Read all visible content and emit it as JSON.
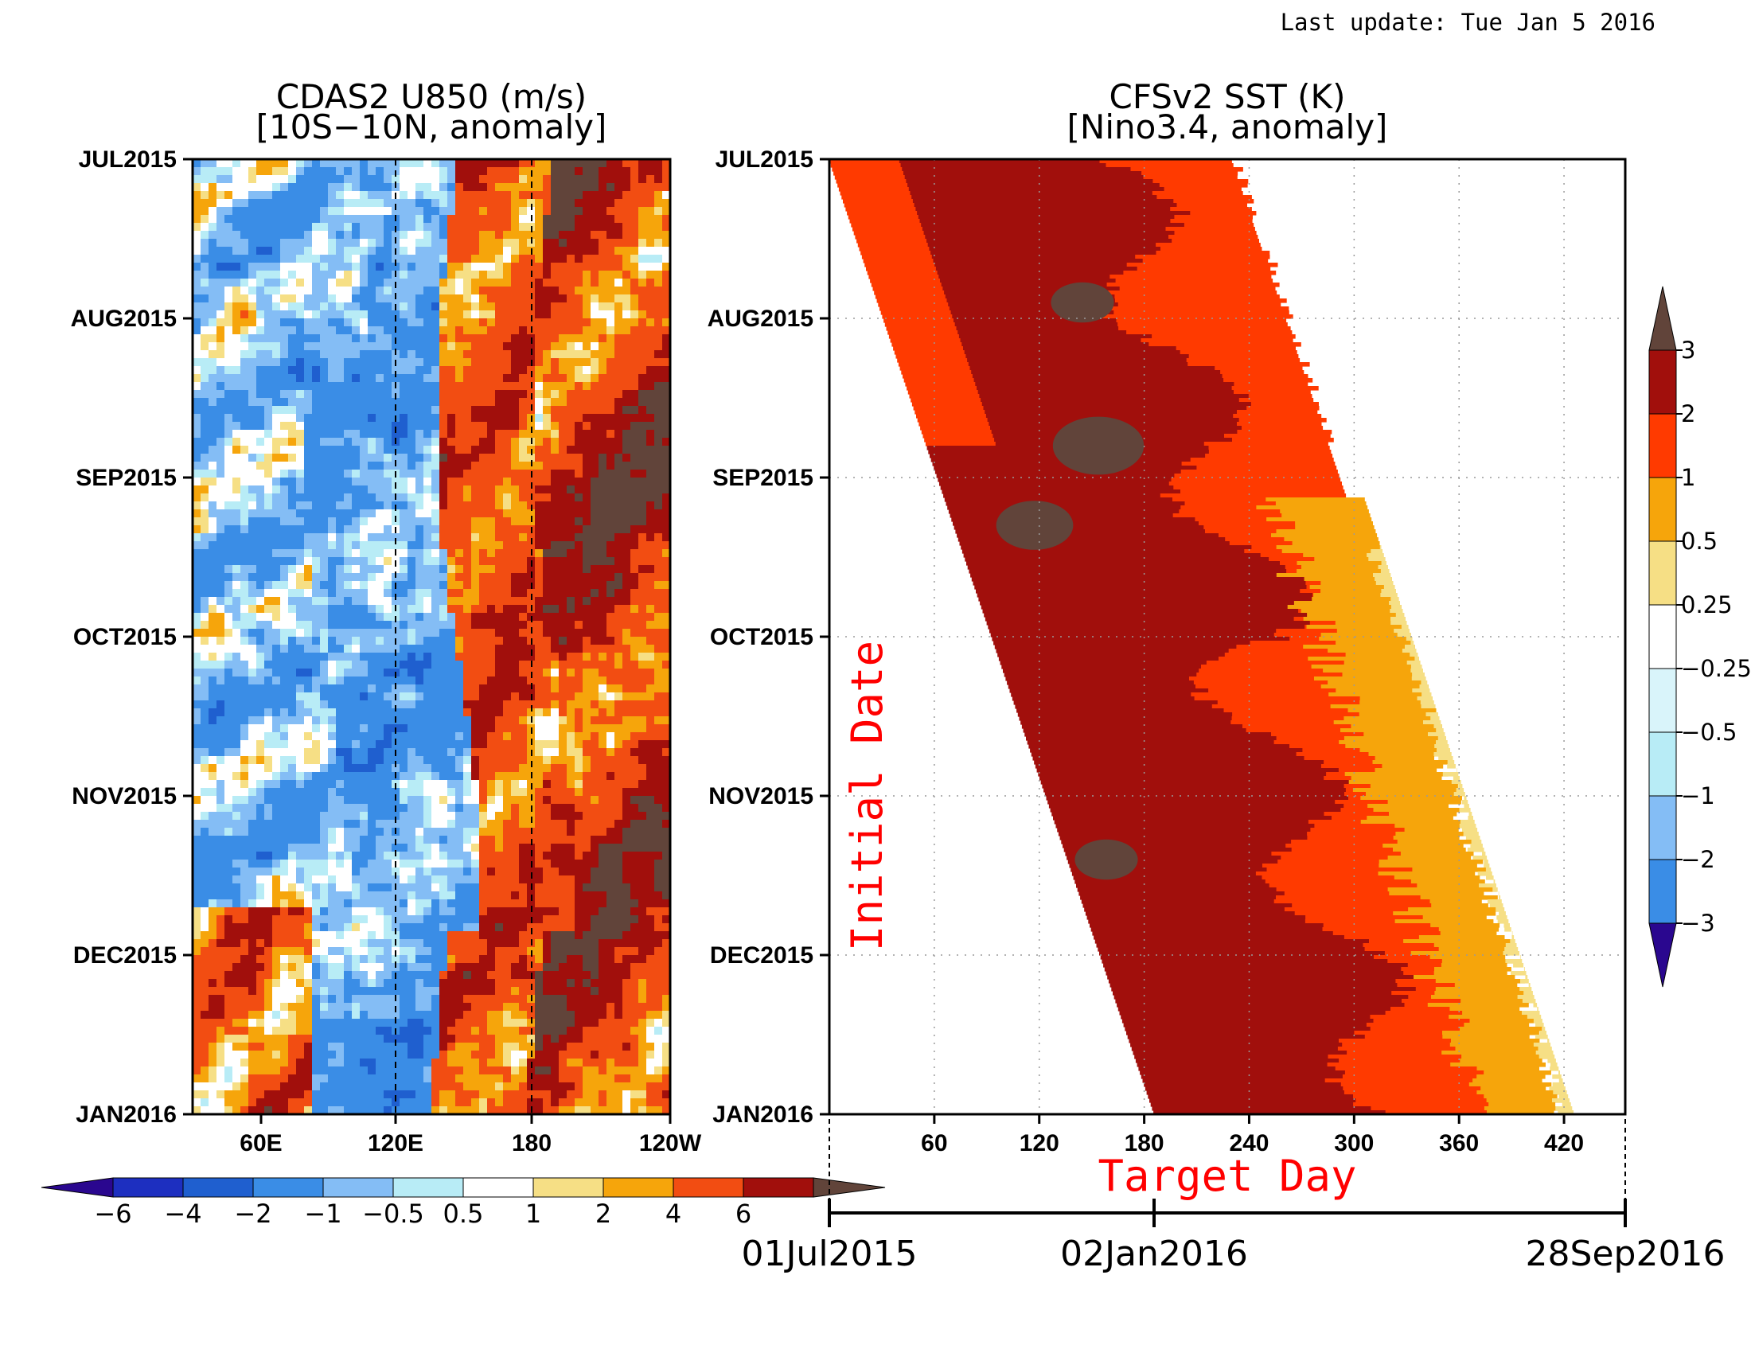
{
  "header": {
    "last_update": "Last update: Tue Jan 5 2016"
  },
  "chart_data": [
    {
      "type": "heatmap",
      "title": "CDAS2 U850 (m/s)",
      "subtitle": "[10S−10N, anomaly]",
      "y_ticks": [
        "JUL2015",
        "AUG2015",
        "SEP2015",
        "OCT2015",
        "NOV2015",
        "DEC2015",
        "JAN2016"
      ],
      "x_ticks": [
        "60E",
        "120E",
        "180",
        "120W"
      ],
      "x_range": [
        "30E",
        "120W"
      ],
      "y_range": [
        "JUL2015",
        "JAN2016"
      ],
      "reference_lines": [
        "120E",
        "180"
      ],
      "colorbar": {
        "orientation": "horizontal",
        "labels": [
          "−6",
          "−4",
          "−2",
          "−1",
          "−0.5",
          "0.5",
          "1",
          "2",
          "4",
          "6"
        ],
        "levels": [
          -6,
          -4,
          -2,
          -1,
          -0.5,
          0.5,
          1,
          2,
          4,
          6
        ],
        "colors": [
          "#1d2fc0",
          "#1f5fcf",
          "#3a8de6",
          "#84bdf5",
          "#b8ecf6",
          "#ffffff",
          "#f6df85",
          "#f6a50b",
          "#f24d12",
          "#a10f0c",
          "#61443a"
        ],
        "under_color": "#2a078f",
        "over_color": "#61443a"
      },
      "pattern": "easterly (blue) anomalies west of 150E, westerly (red/brown) anomalies east of 150E, strongest near and east of 180"
    },
    {
      "type": "heatmap",
      "title": "CFSv2 SST (K)",
      "subtitle": "[Nino3.4, anomaly]",
      "ylabel": "Initial Date",
      "xlabel": "Target Day",
      "y_ticks": [
        "JUL2015",
        "AUG2015",
        "SEP2015",
        "OCT2015",
        "NOV2015",
        "DEC2015",
        "JAN2016"
      ],
      "x_ticks": [
        60,
        120,
        180,
        240,
        300,
        360,
        420
      ],
      "x_range": [
        0,
        455
      ],
      "grid": true,
      "forecast_lead_days": 240,
      "date_axis": {
        "labels": [
          "01Jul2015",
          "02Jan2016",
          "28Sep2016"
        ]
      },
      "colorbar": {
        "orientation": "vertical",
        "labels": [
          "3",
          "2",
          "1",
          "0.5",
          "0.25",
          "−0.25",
          "−0.5",
          "−1",
          "−2",
          "−3"
        ],
        "levels": [
          -3,
          -2,
          -1,
          -0.5,
          -0.25,
          0.25,
          0.5,
          1,
          2,
          3
        ],
        "colors": [
          "#1f5fcf",
          "#3a8de6",
          "#84bdf5",
          "#b8ecf6",
          "#d9f4fa",
          "#ffffff",
          "#f6df85",
          "#f6a50b",
          "#ff3a00",
          "#a10f0c",
          "#61443a"
        ],
        "under_color": "#2a078f",
        "over_color": "#61443a"
      },
      "anomaly_profile_by_lead": [
        {
          "lead_from": 0,
          "lead_to": 40,
          "value": "1 to 2 (early Jul forecasts)"
        },
        {
          "lead_from": 40,
          "lead_to": 170,
          "value": "2 to 3, patches above 3"
        },
        {
          "lead_from": 170,
          "lead_to": 230,
          "value": "1 to 2"
        },
        {
          "lead_from": 230,
          "lead_to": 240,
          "value": "0.5 to 1"
        }
      ]
    }
  ]
}
